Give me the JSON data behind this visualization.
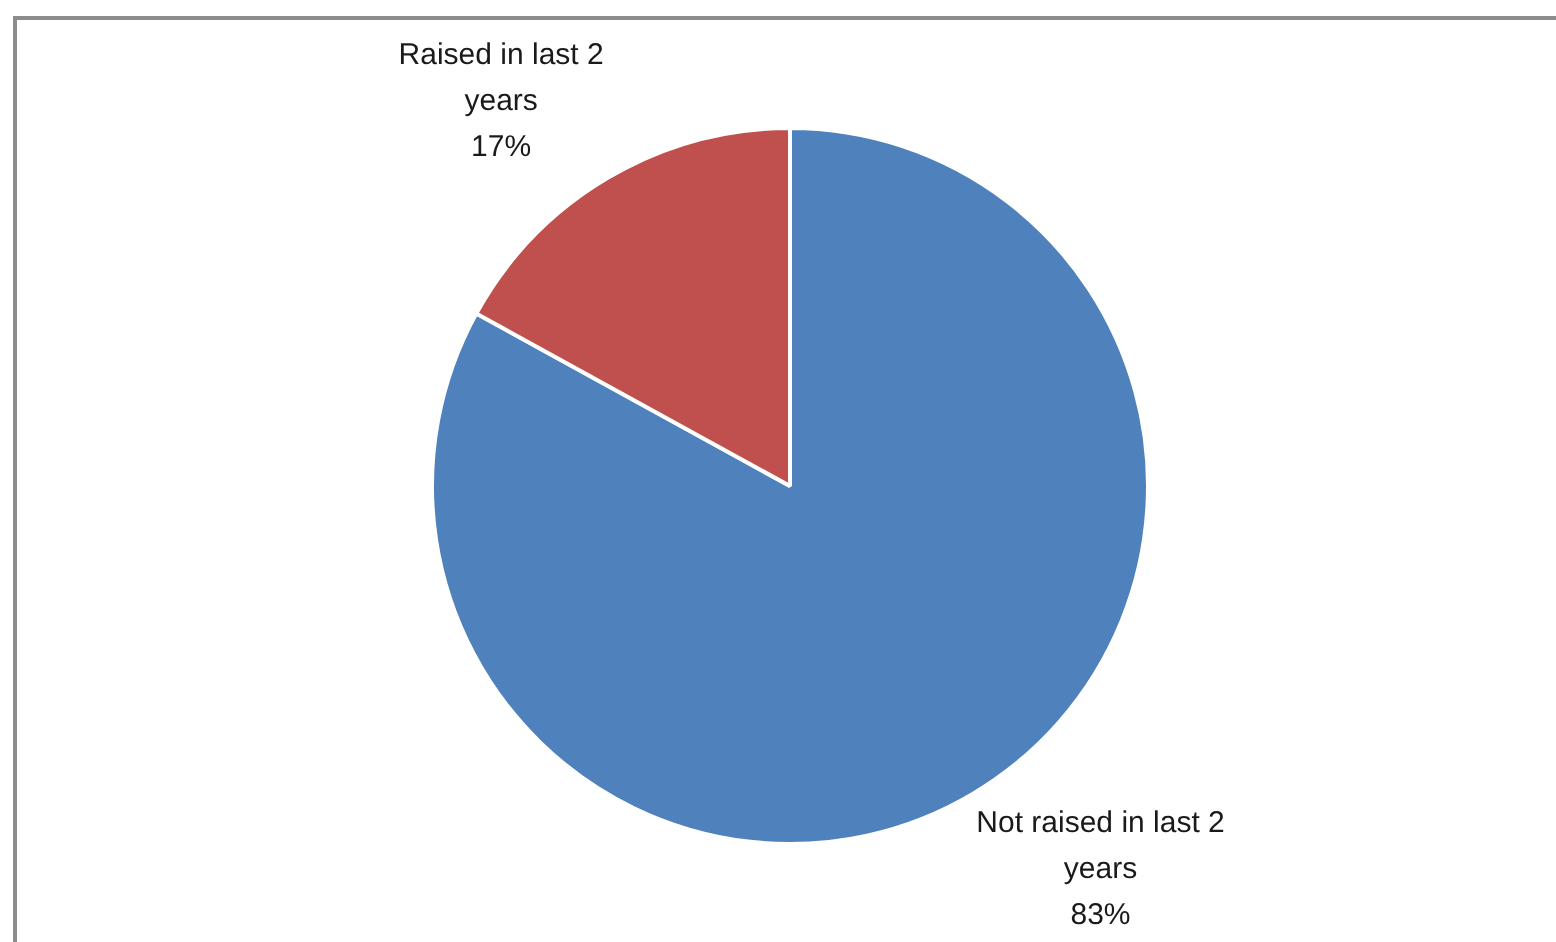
{
  "chart_data": {
    "type": "pie",
    "categories": [
      "Not raised in last 2 years",
      "Raised in last 2 years"
    ],
    "values": [
      83,
      17
    ],
    "colors": [
      "#4f81bd",
      "#c0504d"
    ],
    "value_labels": [
      "83%",
      "17%"
    ],
    "legend": false
  }
}
